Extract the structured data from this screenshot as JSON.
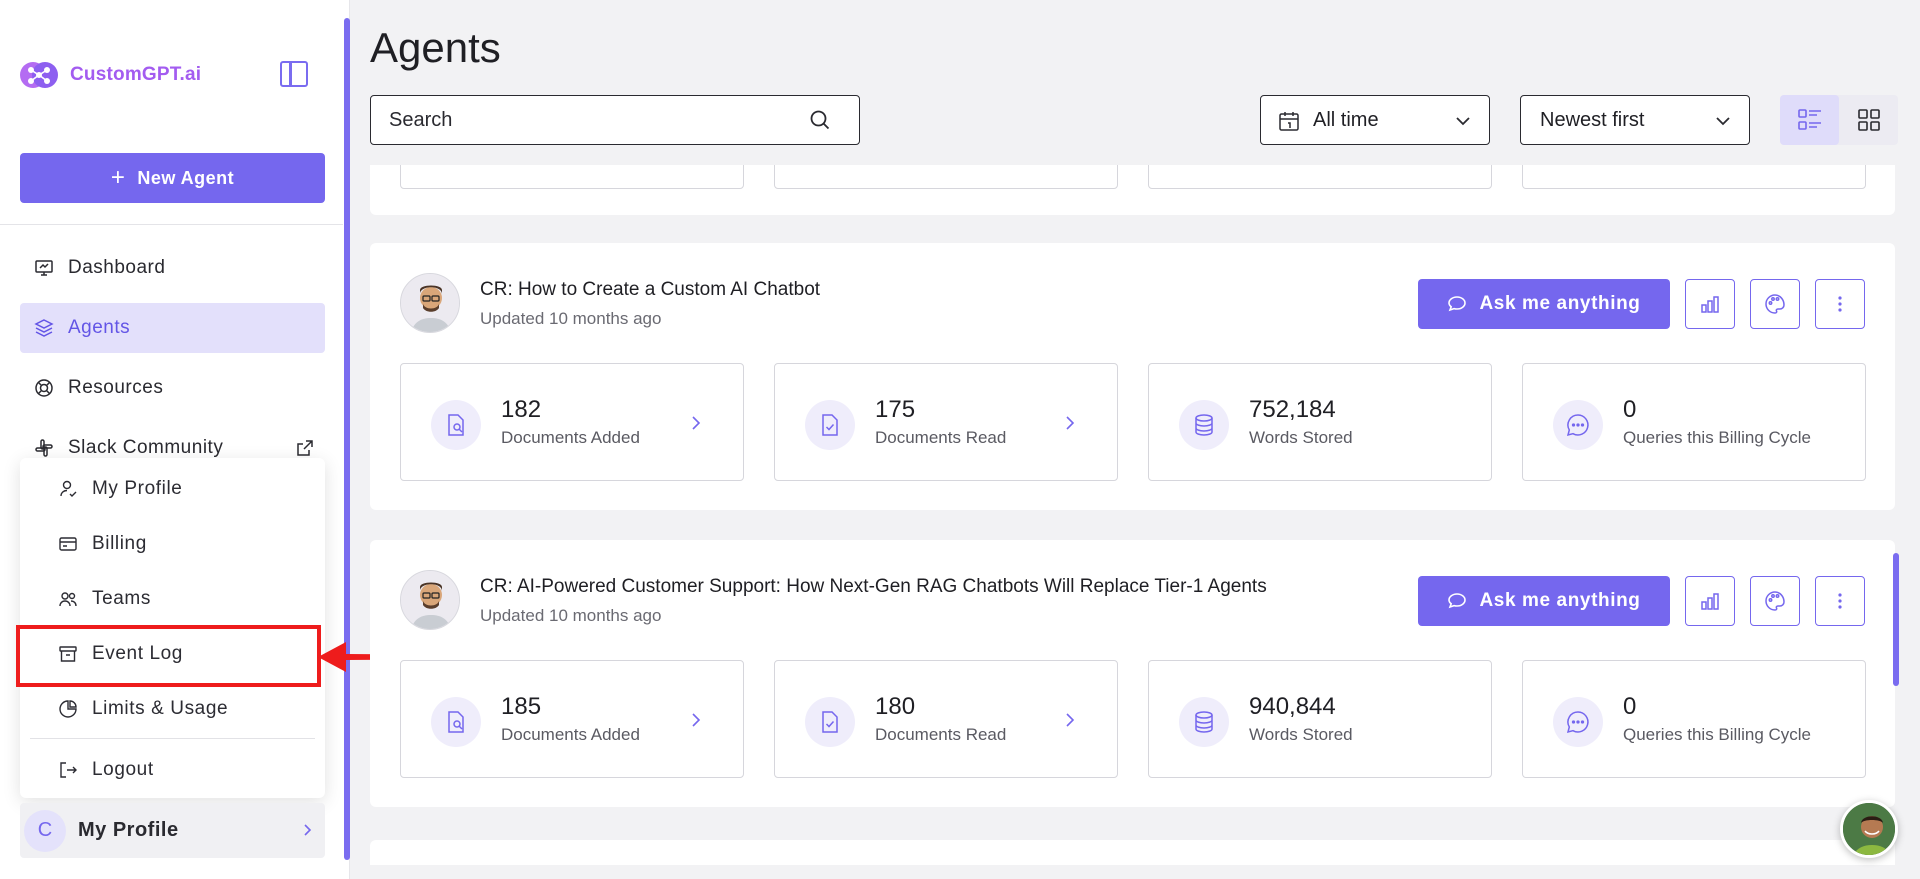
{
  "brand": {
    "name": "CustomGPT.ai",
    "accent": "#7567ee"
  },
  "sidebar": {
    "new_agent_label": "New Agent",
    "items": [
      {
        "label": "Dashboard",
        "icon": "monitor-icon"
      },
      {
        "label": "Agents",
        "icon": "layers-icon",
        "active": true
      },
      {
        "label": "Resources",
        "icon": "lifebuoy-icon"
      },
      {
        "label": "Slack Community",
        "icon": "slack-icon",
        "external": true
      }
    ],
    "profile_label": "My Profile",
    "profile_initial": "C"
  },
  "popup_menu": {
    "items": [
      {
        "label": "My Profile",
        "icon": "user-icon"
      },
      {
        "label": "Billing",
        "icon": "credit-card-icon"
      },
      {
        "label": "Teams",
        "icon": "users-icon"
      },
      {
        "label": "Event Log",
        "icon": "archive-icon",
        "highlighted": true
      },
      {
        "label": "Limits & Usage",
        "icon": "pie-chart-icon"
      },
      {
        "label": "Logout",
        "icon": "logout-icon"
      }
    ]
  },
  "main": {
    "title": "Agents",
    "search_placeholder": "Search",
    "time_filter": "All time",
    "sort": "Newest first"
  },
  "agents": [
    {
      "title": "CR: How to Create a Custom AI Chatbot",
      "updated": "Updated 10 months ago",
      "ask_label": "Ask me anything",
      "stats": [
        {
          "value": "182",
          "label": "Documents Added"
        },
        {
          "value": "175",
          "label": "Documents Read"
        },
        {
          "value": "752,184",
          "label": "Words Stored"
        },
        {
          "value": "0",
          "label": "Queries this Billing Cycle"
        }
      ]
    },
    {
      "title": "CR: AI-Powered Customer Support: How Next-Gen RAG Chatbots Will Replace Tier-1 Agents",
      "updated": "Updated 10 months ago",
      "ask_label": "Ask me anything",
      "stats": [
        {
          "value": "185",
          "label": "Documents Added"
        },
        {
          "value": "180",
          "label": "Documents Read"
        },
        {
          "value": "940,844",
          "label": "Words Stored"
        },
        {
          "value": "0",
          "label": "Queries this Billing Cycle"
        }
      ]
    }
  ]
}
